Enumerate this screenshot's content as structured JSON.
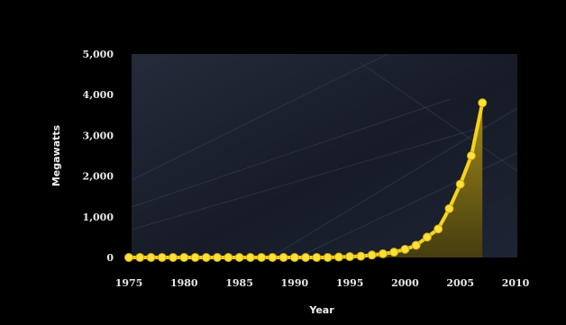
{
  "chart_data": {
    "type": "area",
    "title": "",
    "xlabel": "Year",
    "ylabel": "Megawatts",
    "xlim": [
      1975,
      2010
    ],
    "ylim": [
      0,
      5000
    ],
    "x_ticks": [
      "1975",
      "1980",
      "1985",
      "1990",
      "1995",
      "2000",
      "2005",
      "2010"
    ],
    "y_ticks": [
      "0",
      "1,000",
      "2,000",
      "3,000",
      "4,000",
      "5,000"
    ],
    "grid": false,
    "series": [
      {
        "x": [
          1975,
          1976,
          1977,
          1978,
          1979,
          1980,
          1981,
          1982,
          1983,
          1984,
          1985,
          1986,
          1987,
          1988,
          1989,
          1990,
          1991,
          1992,
          1993,
          1994,
          1995,
          1996,
          1997,
          1998,
          1999,
          2000,
          2001,
          2002,
          2003,
          2004,
          2005,
          2006,
          2007
        ],
        "values": [
          0,
          0,
          0,
          0,
          0,
          0,
          0,
          0,
          0,
          0,
          0,
          0,
          0,
          0,
          0,
          0,
          0,
          0,
          0,
          10,
          20,
          30,
          60,
          90,
          130,
          200,
          300,
          500,
          700,
          1200,
          1800,
          2500,
          3800
        ]
      }
    ],
    "colors": {
      "line": "#f7d21a",
      "marker": "#ffe13a",
      "fill": "#8a7512",
      "plot_bg": "#1b2130"
    }
  }
}
